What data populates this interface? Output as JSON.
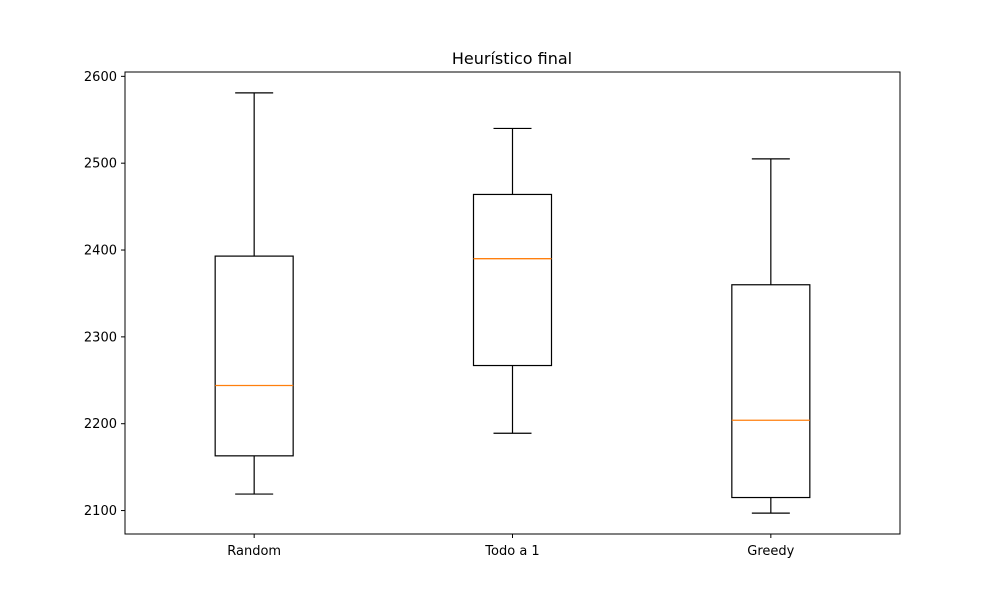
{
  "chart_data": {
    "type": "box",
    "title": "Heurístico final",
    "xlabel": "",
    "ylabel": "",
    "ylim": [
      2073,
      2605
    ],
    "yticks": [
      2100,
      2200,
      2300,
      2400,
      2500,
      2600
    ],
    "categories": [
      "Random",
      "Todo a 1",
      "Greedy"
    ],
    "boxes": [
      {
        "whisker_low": 2119,
        "q1": 2163,
        "median": 2244,
        "q3": 2393,
        "whisker_high": 2581
      },
      {
        "whisker_low": 2189,
        "q1": 2267,
        "median": 2390,
        "q3": 2464,
        "whisker_high": 2540
      },
      {
        "whisker_low": 2097,
        "q1": 2115,
        "median": 2204,
        "q3": 2360,
        "whisker_high": 2505
      }
    ],
    "colors": {
      "box": "#000000",
      "median": "#ff7f0e"
    },
    "grid": false
  }
}
